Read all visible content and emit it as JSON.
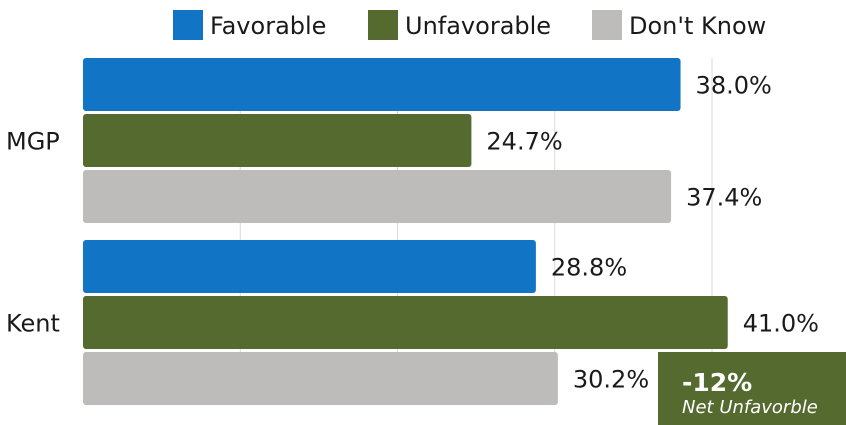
{
  "chart_data": {
    "type": "bar",
    "orientation": "horizontal",
    "categories": [
      "MGP",
      "Kent"
    ],
    "series": [
      {
        "name": "Favorable",
        "color": "#1274c4",
        "values": [
          38.0,
          28.8
        ],
        "labels": [
          "38.0%",
          "28.8%"
        ]
      },
      {
        "name": "Unfavorable",
        "color": "#546a2f",
        "values": [
          24.7,
          41.0
        ],
        "labels": [
          "24.7%",
          "41.0%"
        ]
      },
      {
        "name": "Don't Know",
        "color": "#bdbcbb",
        "values": [
          37.4,
          30.2
        ],
        "labels": [
          "37.4%",
          "30.2%"
        ]
      }
    ],
    "xlim": [
      0,
      40
    ],
    "grid": true,
    "legend": "top",
    "annotations": [
      {
        "category": "Kent",
        "value": "-12%",
        "text": "Net Unfavorble",
        "color": "#546a2f"
      }
    ]
  }
}
